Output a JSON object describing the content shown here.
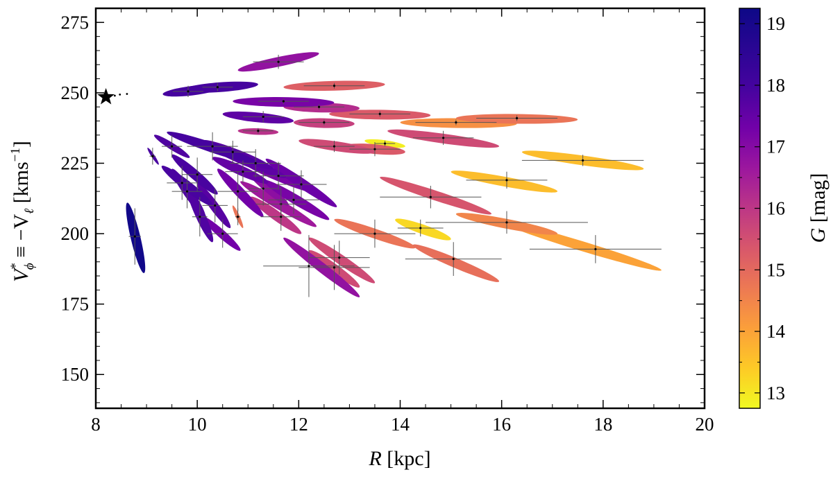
{
  "chart_data": {
    "type": "scatter",
    "title": "",
    "xlabel": {
      "symbol": "R",
      "unit": "[kpc]"
    },
    "ylabel": {
      "lhs": "V",
      "lhs_sup": "*",
      "lhs_sub": "ϕ",
      "op": " ≡ −V",
      "rhs_sub": "ℓ",
      "unit": " [kms",
      "unit_sup": "−1",
      "unit_close": "]"
    },
    "xlim": [
      8,
      20
    ],
    "ylim": [
      138,
      280
    ],
    "x_ticks": [
      8,
      10,
      12,
      14,
      16,
      18,
      20
    ],
    "x_tick_labels": [
      "8",
      "10",
      "12",
      "14",
      "16",
      "18",
      "20"
    ],
    "y_ticks": [
      150,
      175,
      200,
      225,
      250,
      275
    ],
    "y_tick_labels": [
      "150",
      "175",
      "200",
      "225",
      "250",
      "275"
    ],
    "sun": {
      "R": 8.2,
      "V": 248.5,
      "marker": "star"
    },
    "colorbar": {
      "label": {
        "symbol": "G",
        "unit": " [mag]"
      },
      "colormap": "plasma",
      "range": [
        12.75,
        19.25
      ],
      "ticks": [
        13,
        14,
        15,
        16,
        17,
        18,
        19
      ],
      "tick_labels": [
        "13",
        "14",
        "15",
        "16",
        "17",
        "18",
        "19"
      ]
    },
    "stars": [
      {
        "R": 8.77,
        "V": 199,
        "G": 19.2,
        "xerr": 0.12,
        "yerr": 10,
        "ell": [
          -0.15,
          12,
          0.18,
          -13
        ]
      },
      {
        "R": 9.12,
        "V": 227.5,
        "G": 17.9,
        "xerr": 0.06,
        "yerr": 3,
        "ell": [
          -0.1,
          3,
          0.12,
          -3
        ]
      },
      {
        "R": 9.5,
        "V": 231,
        "G": 17.8,
        "xerr": 0.2,
        "yerr": 4,
        "ell": [
          -0.35,
          4,
          0.35,
          -4
        ]
      },
      {
        "R": 9.82,
        "V": 250.5,
        "G": 18.3,
        "xerr": 0.3,
        "yerr": 2,
        "ell": [
          -0.5,
          -1,
          0.65,
          1.5
        ]
      },
      {
        "R": 10.4,
        "V": 252,
        "G": 18.2,
        "xerr": 0.3,
        "yerr": 1.5,
        "ell": [
          -0.7,
          -1,
          0.8,
          1
        ]
      },
      {
        "R": 10.3,
        "V": 231,
        "G": 18.1,
        "xerr": 0.5,
        "yerr": 5,
        "ell": [
          -0.9,
          5,
          0.9,
          -6
        ]
      },
      {
        "R": 10.7,
        "V": 229,
        "G": 17.7,
        "xerr": 0.45,
        "yerr": 4,
        "ell": [
          -0.6,
          4,
          0.8,
          -6
        ]
      },
      {
        "R": 10.0,
        "V": 221,
        "G": 17.9,
        "xerr": 0.3,
        "yerr": 6,
        "ell": [
          -0.5,
          7,
          0.4,
          -7
        ]
      },
      {
        "R": 9.8,
        "V": 215,
        "G": 17.8,
        "xerr": 0.3,
        "yerr": 6,
        "ell": [
          -0.3,
          8,
          0.35,
          -9
        ]
      },
      {
        "R": 10.05,
        "V": 206,
        "G": 17.8,
        "xerr": 0.15,
        "yerr": 7,
        "ell": [
          -0.25,
          11,
          0.25,
          -9
        ]
      },
      {
        "R": 10.35,
        "V": 210,
        "G": 17.7,
        "xerr": 0.25,
        "yerr": 6,
        "ell": [
          -0.35,
          8,
          0.3,
          -8
        ]
      },
      {
        "R": 10.5,
        "V": 200,
        "G": 17.3,
        "xerr": 0.3,
        "yerr": 5,
        "ell": [
          -0.4,
          6,
          0.35,
          -6
        ]
      },
      {
        "R": 10.8,
        "V": 206,
        "G": 14.8,
        "xerr": 0.05,
        "yerr": 3,
        "ell": [
          -0.1,
          4,
          0.1,
          -4
        ]
      },
      {
        "R": 10.8,
        "V": 215,
        "G": 17.3,
        "xerr": 0.4,
        "yerr": 7,
        "ell": [
          -0.4,
          8,
          0.5,
          -9
        ]
      },
      {
        "R": 11.6,
        "V": 261,
        "G": 16.8,
        "xerr": 0.5,
        "yerr": 2.5,
        "ell": [
          -0.8,
          -3,
          0.8,
          3
        ]
      },
      {
        "R": 12.7,
        "V": 252.5,
        "G": 15.2,
        "xerr": 0.6,
        "yerr": 1,
        "ell": [
          -1.0,
          -0.5,
          1.0,
          0.5
        ]
      },
      {
        "R": 11.7,
        "V": 247,
        "G": 17.2,
        "xerr": 0.5,
        "yerr": 1,
        "ell": [
          -1.0,
          0,
          1.0,
          -0.5
        ]
      },
      {
        "R": 12.4,
        "V": 245,
        "G": 16.2,
        "xerr": 0.5,
        "yerr": 1,
        "ell": [
          -0.7,
          0,
          0.8,
          -0.5
        ]
      },
      {
        "R": 13.6,
        "V": 242.5,
        "G": 15.3,
        "xerr": 0.6,
        "yerr": 1,
        "ell": [
          -1.0,
          0,
          1.0,
          -0.5
        ]
      },
      {
        "R": 15.1,
        "V": 239.5,
        "G": 14.3,
        "xerr": 0.8,
        "yerr": 1,
        "ell": [
          -1.1,
          0,
          1.2,
          -0.5
        ]
      },
      {
        "R": 16.3,
        "V": 241,
        "G": 14.8,
        "xerr": 0.8,
        "yerr": 1,
        "ell": [
          -1.2,
          0,
          1.2,
          -0.5
        ]
      },
      {
        "R": 11.3,
        "V": 241.5,
        "G": 17.6,
        "xerr": 0.4,
        "yerr": 2,
        "ell": [
          -0.8,
          1,
          0.6,
          -1.5
        ]
      },
      {
        "R": 12.5,
        "V": 239.5,
        "G": 15.8,
        "xerr": 0.5,
        "yerr": 1,
        "ell": [
          -0.6,
          0,
          0.6,
          -0.5
        ]
      },
      {
        "R": 11.2,
        "V": 236.5,
        "G": 16.1,
        "xerr": 0.3,
        "yerr": 1,
        "ell": [
          -0.4,
          0,
          0.4,
          -0.5
        ]
      },
      {
        "R": 12.7,
        "V": 231,
        "G": 15.6,
        "xerr": 0.4,
        "yerr": 2,
        "ell": [
          -0.7,
          2,
          0.8,
          -2
        ]
      },
      {
        "R": 13.5,
        "V": 230,
        "G": 15.3,
        "xerr": 0.5,
        "yerr": 2.5,
        "ell": [
          -0.6,
          1,
          0.6,
          -1
        ]
      },
      {
        "R": 13.7,
        "V": 232,
        "G": 12.9,
        "xerr": 0.2,
        "yerr": 1,
        "ell": [
          -0.4,
          1,
          0.4,
          -1
        ]
      },
      {
        "R": 14.85,
        "V": 234,
        "G": 15.6,
        "xerr": 0.6,
        "yerr": 2.5,
        "ell": [
          -1.1,
          2.5,
          1.1,
          -3
        ]
      },
      {
        "R": 17.6,
        "V": 226,
        "G": 13.6,
        "xerr": 1.2,
        "yerr": 2,
        "ell": [
          -1.2,
          3,
          1.2,
          -3
        ]
      },
      {
        "R": 16.1,
        "V": 219,
        "G": 13.6,
        "xerr": 0.8,
        "yerr": 3,
        "ell": [
          -1.1,
          3,
          1.0,
          -4
        ]
      },
      {
        "R": 14.6,
        "V": 213,
        "G": 15.4,
        "xerr": 1.0,
        "yerr": 4,
        "ell": [
          -1.0,
          7,
          1.2,
          -6
        ]
      },
      {
        "R": 16.1,
        "V": 204,
        "G": 14.5,
        "xerr": 1.6,
        "yerr": 4,
        "ell": [
          -1.0,
          3,
          1.0,
          -4
        ]
      },
      {
        "R": 17.85,
        "V": 194.5,
        "G": 14.0,
        "xerr": 1.3,
        "yerr": 5,
        "ell": [
          -1.9,
          10,
          1.3,
          -7.5
        ]
      },
      {
        "R": 14.4,
        "V": 202,
        "G": 13.2,
        "xerr": 0.45,
        "yerr": 3,
        "ell": [
          -0.5,
          3,
          0.6,
          -4
        ]
      },
      {
        "R": 13.5,
        "V": 200,
        "G": 14.8,
        "xerr": 0.8,
        "yerr": 5,
        "ell": [
          -0.8,
          5,
          0.8,
          -5
        ]
      },
      {
        "R": 15.05,
        "V": 191,
        "G": 14.9,
        "xerr": 0.95,
        "yerr": 6,
        "ell": [
          -0.8,
          5,
          0.9,
          -8
        ]
      },
      {
        "R": 12.8,
        "V": 191.5,
        "G": 15.6,
        "xerr": 0.6,
        "yerr": 6,
        "ell": [
          -0.6,
          7,
          0.7,
          -9
        ]
      },
      {
        "R": 12.2,
        "V": 188.5,
        "G": 16.8,
        "xerr": 0.9,
        "yerr": 11,
        "ell": [
          -0.5,
          10,
          1.0,
          -11
        ]
      },
      {
        "R": 12.7,
        "V": 188,
        "G": 15.6,
        "xerr": 0.7,
        "yerr": 8,
        "ell": [
          -0.5,
          6,
          0.5,
          -7
        ]
      },
      {
        "R": 11.6,
        "V": 220.5,
        "G": 17.2,
        "xerr": 0.5,
        "yerr": 5,
        "ell": [
          -0.7,
          5,
          0.8,
          -6
        ]
      },
      {
        "R": 11.65,
        "V": 210.5,
        "G": 16.6,
        "xerr": 0.5,
        "yerr": 6,
        "ell": [
          -0.8,
          8,
          0.7,
          -8
        ]
      },
      {
        "R": 11.9,
        "V": 212,
        "G": 17.2,
        "xerr": 0.5,
        "yerr": 5,
        "ell": [
          -0.6,
          7,
          0.7,
          -7
        ]
      },
      {
        "R": 12.05,
        "V": 217.5,
        "G": 17.4,
        "xerr": 0.5,
        "yerr": 5,
        "ell": [
          -0.7,
          9,
          0.7,
          -8
        ]
      },
      {
        "R": 11.3,
        "V": 216,
        "G": 16.9,
        "xerr": 0.3,
        "yerr": 6,
        "ell": [
          -0.3,
          6,
          0.5,
          -6
        ]
      },
      {
        "R": 11.65,
        "V": 206,
        "G": 16.0,
        "xerr": 0.4,
        "yerr": 5,
        "ell": [
          -0.6,
          7,
          0.4,
          -6
        ]
      },
      {
        "R": 11.15,
        "V": 225,
        "G": 17.6,
        "xerr": 0.5,
        "yerr": 5,
        "ell": [
          -0.9,
          6,
          0.6,
          -5
        ]
      },
      {
        "R": 10.9,
        "V": 222,
        "G": 17.5,
        "xerr": 0.35,
        "yerr": 4,
        "ell": [
          -0.6,
          5,
          0.5,
          -4
        ]
      },
      {
        "R": 9.7,
        "V": 218,
        "G": 17.9,
        "xerr": 0.3,
        "yerr": 6,
        "ell": [
          -0.4,
          6,
          0.6,
          -8
        ]
      }
    ]
  }
}
